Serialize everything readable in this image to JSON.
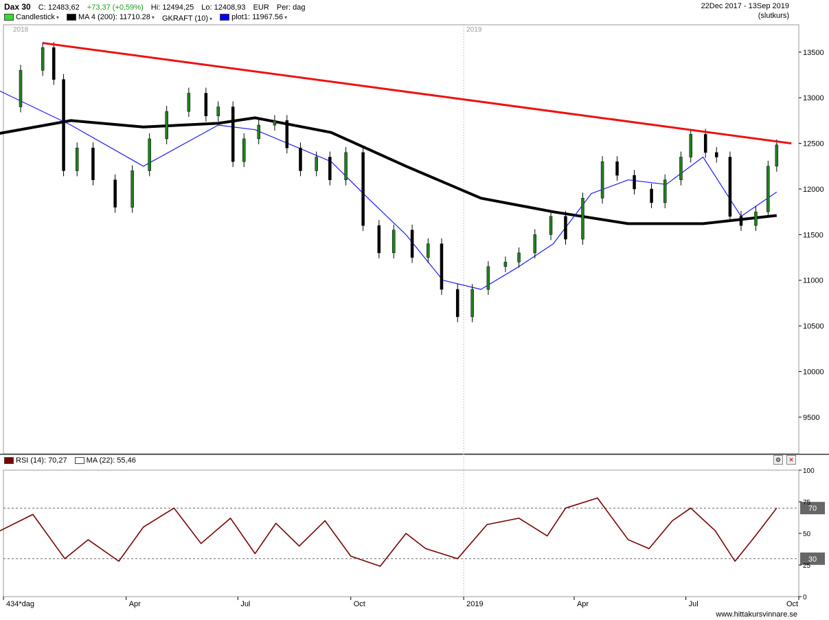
{
  "header": {
    "symbol": "Dax 30",
    "close_label": "C:",
    "close": "12483,62",
    "change": "+73,37 (+0,59%)",
    "hi_label": "Hi:",
    "hi": "12494,25",
    "lo_label": "Lo:",
    "lo": "12408,93",
    "currency": "EUR",
    "period": "Per: dag",
    "date_range": "22Dec 2017 - 13Sep 2019",
    "price_basis": "(slutkurs)",
    "legend": [
      {
        "label": "Candlestick",
        "color": "#33dd33"
      },
      {
        "label": "MA 4 (200): 11710.28",
        "color": "#000000"
      },
      {
        "label": "GKRAFT (10)",
        "color": "#ffffff"
      },
      {
        "label": "plot1: 11967.56",
        "color": "#0000ff"
      }
    ]
  },
  "rsi_header": {
    "rsi_label": "RSI (14): 70,27",
    "rsi_color": "#7a0000",
    "ma_label": "MA (22): 55,46"
  },
  "watermark": "www.hittakursvinnare.se",
  "chart_data": [
    {
      "type": "line",
      "name": "Dax 30 price panel",
      "ylim": [
        9100,
        13800
      ],
      "yticks": [
        9500,
        10000,
        10500,
        11000,
        11500,
        12000,
        12500,
        13000,
        13500
      ],
      "year_labels": [
        {
          "label": "2018",
          "x": "2018-01"
        },
        {
          "label": "2019",
          "x": "2019-01"
        }
      ],
      "colors": {
        "price": "#208020",
        "ma200": "#000000",
        "ma_red": "#e02020",
        "plot1": "#1a1aff",
        "trend": "#ee1111",
        "gkraft": "#ff2020"
      },
      "series": [
        {
          "name": "Close",
          "x": [
            "2017-12",
            "2018-01-05",
            "2018-01-23",
            "2018-02-01",
            "2018-02-09",
            "2018-02-20",
            "2018-03-05",
            "2018-03-23",
            "2018-04-06",
            "2018-04-20",
            "2018-05-04",
            "2018-05-22",
            "2018-06-05",
            "2018-06-15",
            "2018-06-27",
            "2018-07-06",
            "2018-07-18",
            "2018-07-31",
            "2018-08-10",
            "2018-08-21",
            "2018-09-03",
            "2018-09-14",
            "2018-09-27",
            "2018-10-11",
            "2018-10-24",
            "2018-11-05",
            "2018-11-20",
            "2018-12-03",
            "2018-12-14",
            "2018-12-27",
            "2019-01-08",
            "2019-01-21",
            "2019-02-04",
            "2019-02-15",
            "2019-02-28",
            "2019-03-13",
            "2019-03-25",
            "2019-04-08",
            "2019-04-24",
            "2019-05-06",
            "2019-05-20",
            "2019-06-03",
            "2019-06-14",
            "2019-06-27",
            "2019-07-05",
            "2019-07-17",
            "2019-07-26",
            "2019-08-06",
            "2019-08-15",
            "2019-08-27",
            "2019-09-06",
            "2019-09-13"
          ],
          "values": [
            12900,
            13300,
            13550,
            13200,
            12200,
            12450,
            12100,
            11800,
            12200,
            12550,
            12850,
            13050,
            12800,
            12900,
            12300,
            12550,
            12700,
            12750,
            12450,
            12200,
            12350,
            12100,
            12400,
            11600,
            11300,
            11550,
            11250,
            11400,
            10900,
            10600,
            10900,
            11150,
            11200,
            11300,
            11500,
            11700,
            11450,
            11900,
            12300,
            12150,
            12000,
            11850,
            12100,
            12350,
            12600,
            12400,
            12350,
            11700,
            11600,
            11750,
            12250,
            12483
          ]
        },
        {
          "name": "MA 4 (200)",
          "x": [
            "2017-12",
            "2018-02",
            "2018-04",
            "2018-06",
            "2018-07",
            "2018-09",
            "2018-11",
            "2019-01",
            "2019-03",
            "2019-05",
            "2019-07",
            "2019-09-13"
          ],
          "values": [
            12600,
            12750,
            12680,
            12720,
            12780,
            12620,
            12250,
            11900,
            11750,
            11620,
            11620,
            11710
          ]
        },
        {
          "name": "plot1",
          "x": [
            "2017-12",
            "2018-02",
            "2018-04",
            "2018-06",
            "2018-07",
            "2018-09",
            "2018-10",
            "2018-11",
            "2018-12",
            "2019-01",
            "2019-02",
            "2019-03",
            "2019-04",
            "2019-05",
            "2019-06",
            "2019-07",
            "2019-08",
            "2019-09-13"
          ],
          "values": [
            13100,
            12700,
            12250,
            12700,
            12650,
            12300,
            11900,
            11500,
            11000,
            10900,
            11150,
            11400,
            11950,
            12100,
            12050,
            12350,
            11700,
            11967
          ]
        }
      ]
    },
    {
      "type": "line",
      "name": "RSI panel",
      "ylim": [
        0,
        100
      ],
      "yticks": [
        0,
        25,
        50,
        75,
        100
      ],
      "levels": [
        70,
        30
      ],
      "xticks": [
        "434*dag",
        "Apr",
        "Jul",
        "Oct",
        "2019",
        "Apr",
        "Jul",
        "Oct"
      ],
      "series": [
        {
          "name": "RSI (14)",
          "x": [
            "2017-12",
            "2018-01-15",
            "2018-02-10",
            "2018-03-01",
            "2018-03-26",
            "2018-04-15",
            "2018-05-10",
            "2018-06-01",
            "2018-06-25",
            "2018-07-15",
            "2018-08-01",
            "2018-08-20",
            "2018-09-10",
            "2018-10-01",
            "2018-10-25",
            "2018-11-15",
            "2018-12-01",
            "2018-12-27",
            "2019-01-20",
            "2019-02-15",
            "2019-03-10",
            "2019-03-25",
            "2019-04-20",
            "2019-05-15",
            "2019-06-01",
            "2019-06-20",
            "2019-07-05",
            "2019-07-25",
            "2019-08-10",
            "2019-08-25",
            "2019-09-13"
          ],
          "values": [
            50,
            65,
            30,
            45,
            28,
            55,
            70,
            42,
            62,
            34,
            58,
            40,
            60,
            32,
            24,
            50,
            38,
            30,
            57,
            62,
            48,
            70,
            78,
            45,
            38,
            60,
            70,
            52,
            28,
            46,
            70
          ]
        }
      ]
    }
  ]
}
